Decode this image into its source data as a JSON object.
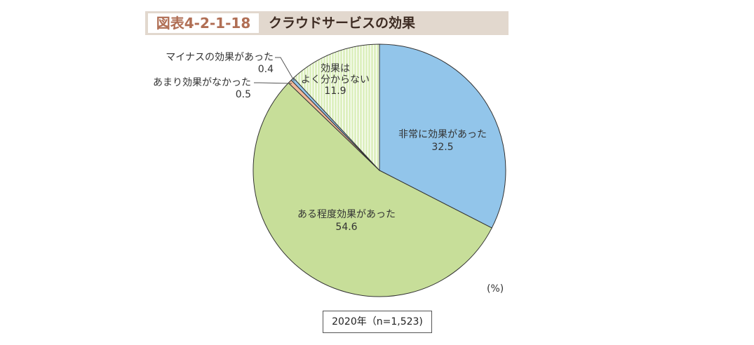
{
  "header": {
    "figure_number": "図表4-2-1-18",
    "title": "クラウドサービスの効果"
  },
  "unit_label": "(%)",
  "footnote": "2020年（n=1,523)",
  "colors": {
    "very_effective": "#92c5ea",
    "somewhat_effective": "#c7de99",
    "not_very_effective": "#f2b99a",
    "negative_effect": "#92c5ea",
    "unknown": "#def0c1",
    "unknown_stripe": "#ffffff",
    "outline": "#333333"
  },
  "chart_data": {
    "type": "pie",
    "title": "クラウドサービスの効果",
    "unit": "%",
    "slices": [
      {
        "label": "非常に効果があった",
        "value": 32.5
      },
      {
        "label": "ある程度効果があった",
        "value": 54.6
      },
      {
        "label": "あまり効果がなかった",
        "value": 0.5
      },
      {
        "label": "マイナスの効果があった",
        "value": 0.4
      },
      {
        "label": "効果はよく分からない",
        "value": 11.9
      }
    ],
    "slice_label_lines": [
      [
        "非常に効果があった",
        "32.5"
      ],
      [
        "ある程度効果があった",
        "54.6"
      ],
      [
        "あまり効果がなかった",
        "0.5"
      ],
      [
        "マイナスの効果があった",
        "0.4"
      ],
      [
        "効果は",
        "よく分からない",
        "11.9"
      ]
    ]
  }
}
